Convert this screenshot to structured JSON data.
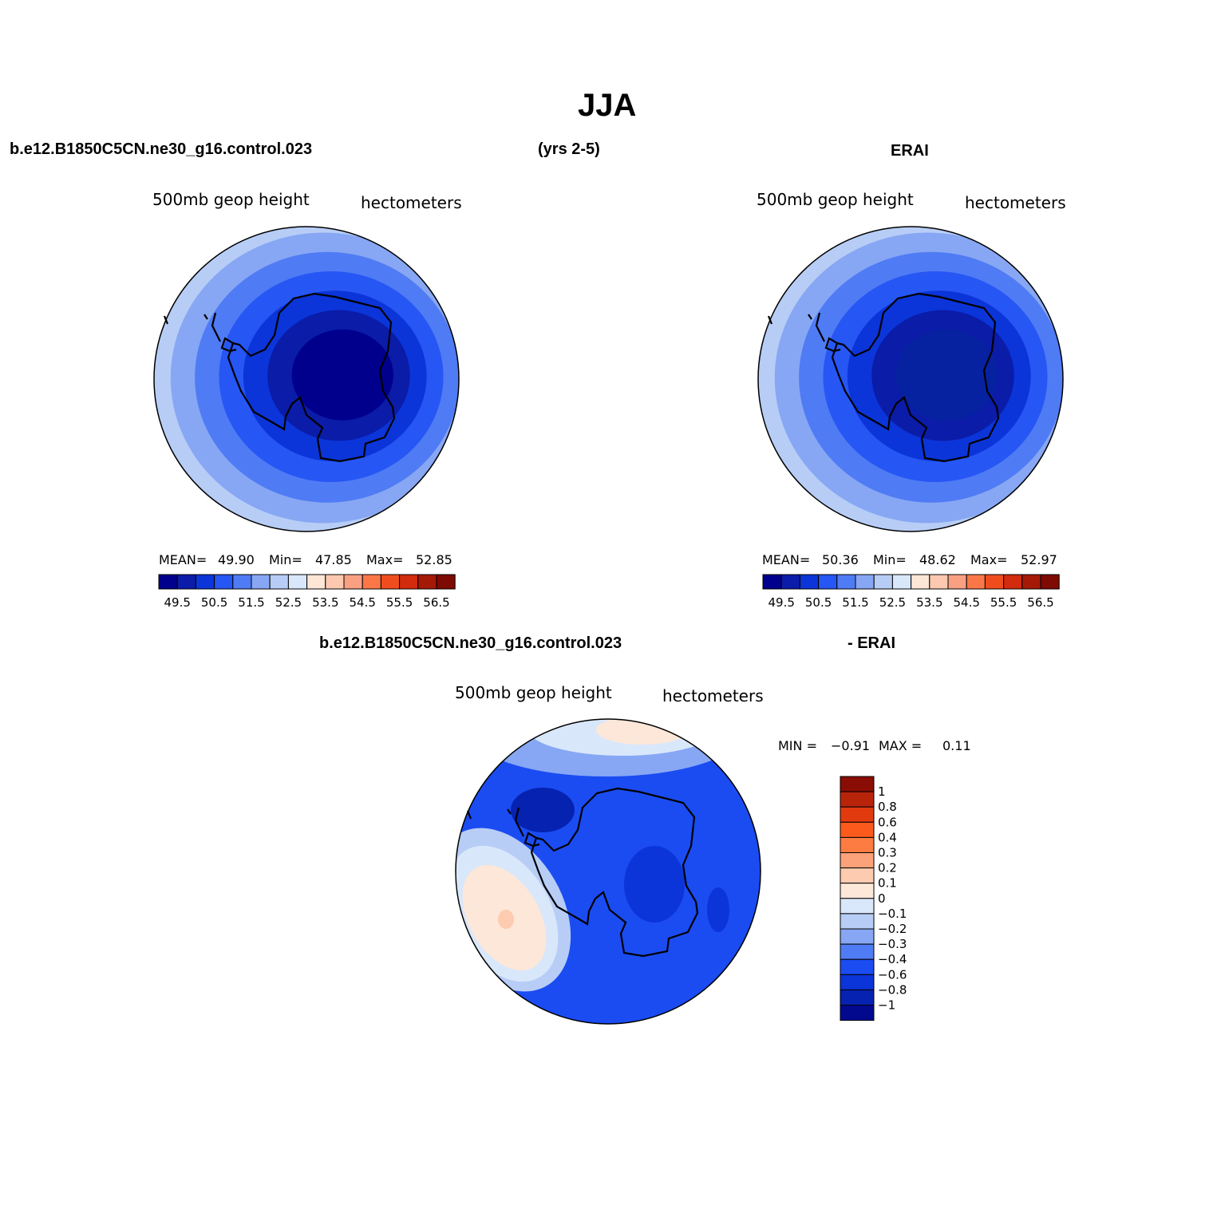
{
  "figure": {
    "title": "JJA",
    "header_left": "b.e12.B1850C5CN.ne30_g16.control.023",
    "header_mid": "(yrs 2-5)",
    "header_right": "ERAI",
    "diff_header_left": "b.e12.B1850C5CN.ne30_g16.control.023",
    "diff_header_right": "- ERAI"
  },
  "panels": [
    {
      "id": "model",
      "left_label": "500mb  geop  height",
      "right_label": "hectometers",
      "stats": {
        "mean_label": "MEAN=",
        "mean": "49.90",
        "min_label": "Min=",
        "min": "47.85",
        "max_label": "Max=",
        "max": "52.85"
      }
    },
    {
      "id": "erai",
      "left_label": "500mb  geop  height",
      "right_label": "hectometers",
      "stats": {
        "mean_label": "MEAN=",
        "mean": "50.36",
        "min_label": "Min=",
        "min": "48.62",
        "max_label": "Max=",
        "max": "52.97"
      }
    },
    {
      "id": "difference",
      "left_label": "500mb  geop  height",
      "right_label": "hectometers",
      "stats": {
        "min_label": "MIN =",
        "min": "−0.91",
        "max_label": "MAX =",
        "max": "0.11"
      }
    }
  ],
  "colorbar_main": {
    "colors": [
      "#00008c",
      "#0a1ca8",
      "#0b35d9",
      "#2656f4",
      "#4f7bf4",
      "#87a7f4",
      "#b7cdf6",
      "#d9e7fb",
      "#fde6d6",
      "#fcc9b0",
      "#f9a083",
      "#fb7748",
      "#f04d1e",
      "#d22b0d",
      "#a51a06",
      "#7d0a03"
    ],
    "tick_labels": [
      "49.5",
      "50.5",
      "51.5",
      "52.5",
      "53.5",
      "54.5",
      "55.5",
      "56.5"
    ]
  },
  "colorbar_diff": {
    "colors_top_to_bottom": [
      "#8a0d05",
      "#b8240a",
      "#e23a0f",
      "#fc5a1d",
      "#fc7c42",
      "#fca27a",
      "#fdcbb0",
      "#fde7d8",
      "#d9e7fb",
      "#b7cdf6",
      "#87a7f4",
      "#4f7bf4",
      "#1b4cf2",
      "#0b35d9",
      "#0622b0",
      "#02098f"
    ],
    "tick_labels": [
      "1",
      "0.8",
      "0.6",
      "0.4",
      "0.3",
      "0.2",
      "0.1",
      "0",
      "−0.1",
      "−0.2",
      "−0.3",
      "−0.4",
      "−0.6",
      "−0.8",
      "−1"
    ]
  },
  "map_fills": {
    "model_rings": [
      "#d9e7fb",
      "#b7cdf6",
      "#87a7f4",
      "#4f7bf4",
      "#2656f4",
      "#0b35d9",
      "#0a1ca8",
      "#00008c"
    ],
    "erai_rings": [
      "#d9e7fb",
      "#b7cdf6",
      "#87a7f4",
      "#4f7bf4",
      "#2656f4",
      "#0b35d9",
      "#0a1ca8",
      "#0622a0"
    ],
    "diff_base": "#1b4cf2",
    "coast": "#000000"
  }
}
